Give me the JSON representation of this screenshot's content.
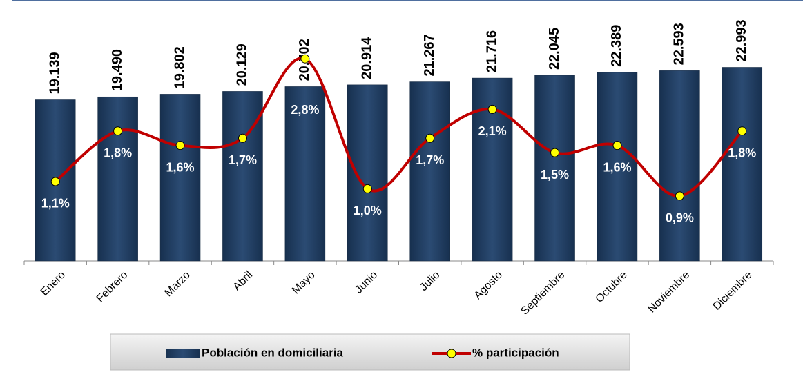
{
  "chart_data": {
    "type": "bar",
    "categories": [
      "Enero",
      "Febrero",
      "Marzo",
      "Abril",
      "Mayo",
      "Junio",
      "Julio",
      "Agosto",
      "Septiembre",
      "Octubre",
      "Noviembre",
      "Diciembre"
    ],
    "ylim": [
      0,
      30000
    ],
    "y2lim": [
      0,
      3.5
    ],
    "series": [
      {
        "name": "Población en domiciliaria",
        "type": "bar",
        "color": "#1f3b60",
        "values": [
          19139,
          19490,
          19802,
          20129,
          20702,
          20914,
          21267,
          21716,
          22045,
          22389,
          22593,
          22993
        ],
        "value_labels": [
          "19.139",
          "19.490",
          "19.802",
          "20.129",
          "20.702",
          "20.914",
          "21.267",
          "21.716",
          "22.045",
          "22.389",
          "22.593",
          "22.993"
        ]
      },
      {
        "name": "% participación",
        "type": "line",
        "axis": "y2",
        "color": "#c00000",
        "values": [
          1.1,
          1.8,
          1.6,
          1.7,
          2.8,
          1.0,
          1.7,
          2.1,
          1.5,
          1.6,
          0.9,
          1.8
        ],
        "value_labels": [
          "1,1%",
          "1,8%",
          "1,6%",
          "1,7%",
          "2,8%",
          "1,0%",
          "1,7%",
          "2,1%",
          "1,5%",
          "1,6%",
          "0,9%",
          "1,8%"
        ]
      }
    ]
  }
}
